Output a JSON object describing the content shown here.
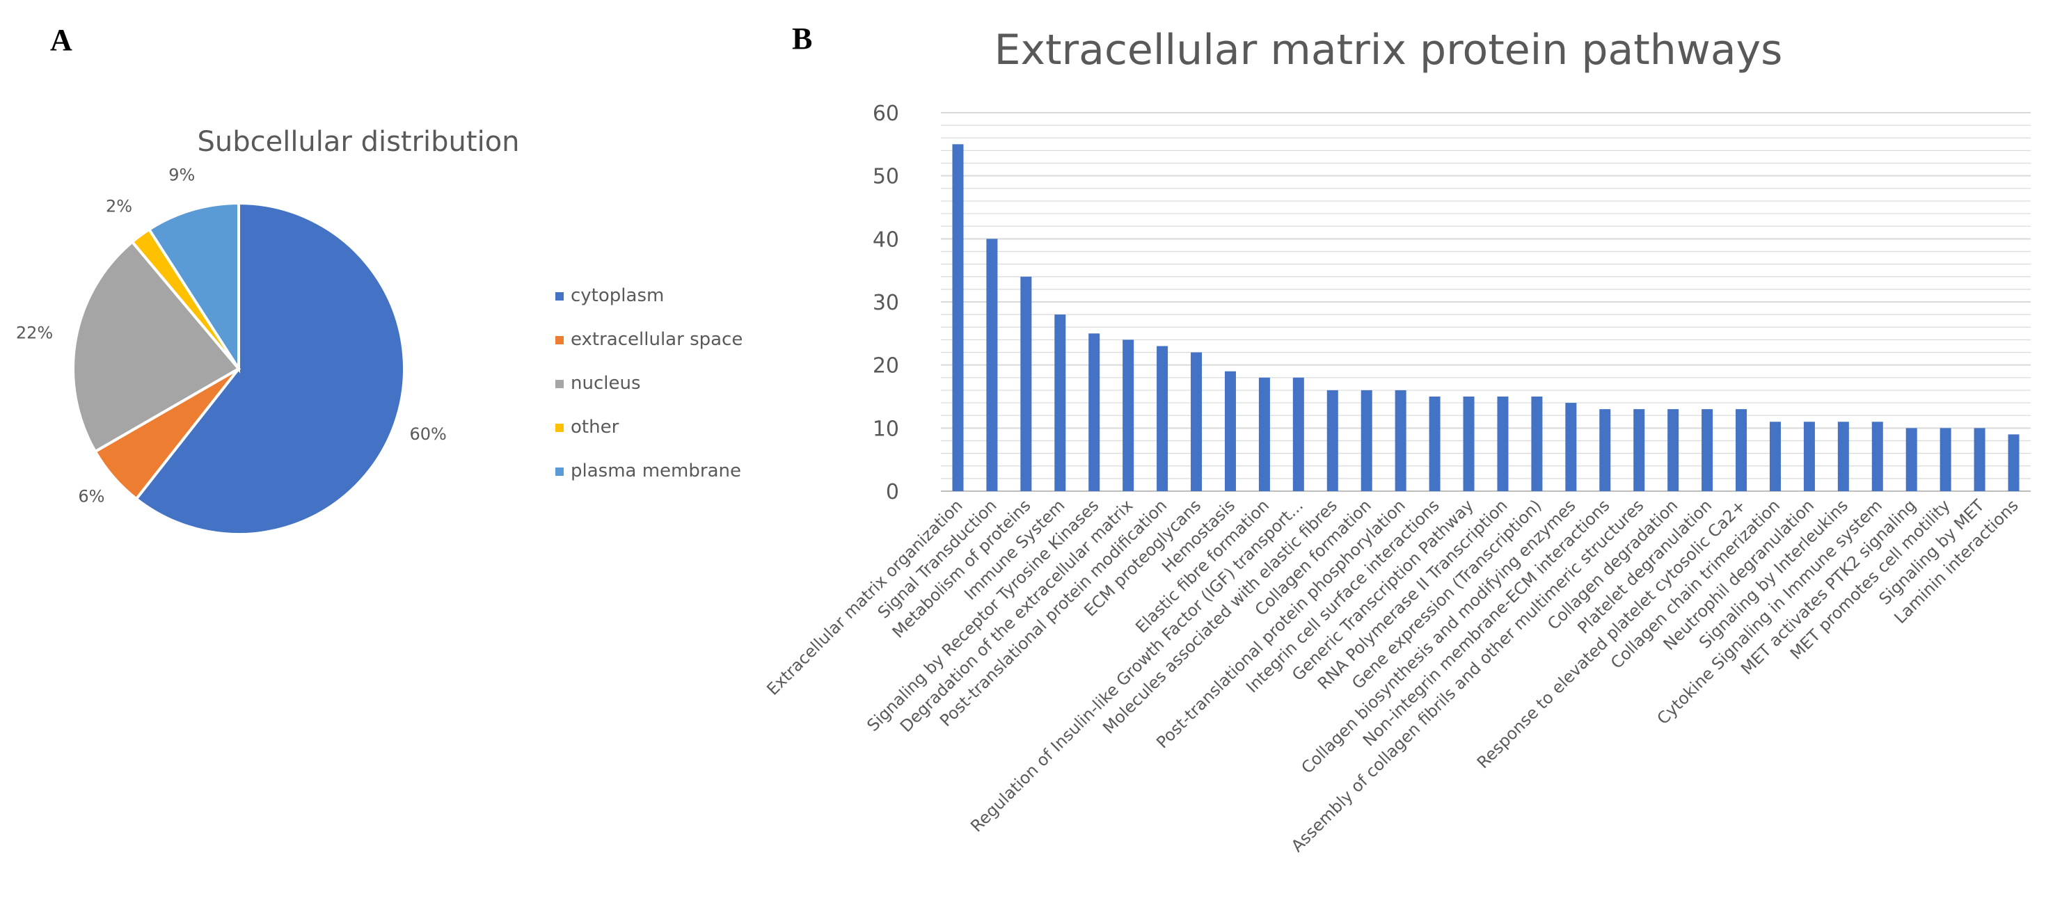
{
  "panels": {
    "a_letter": "A",
    "b_letter": "B"
  },
  "colors": {
    "cytoplasm": "#4472C4",
    "extracellular_space": "#ED7D31",
    "nucleus": "#A5A5A5",
    "other": "#FFC000",
    "plasma_membrane": "#5B9BD5",
    "bar": "#4472C4",
    "grid": "#D9D9D9",
    "text": "#595959"
  },
  "chart_data": [
    {
      "type": "pie",
      "title": "Subcellular distribution",
      "categories": [
        "cytoplasm",
        "extracellular space",
        "nucleus",
        "other",
        "plasma membrane"
      ],
      "values": [
        60,
        6,
        22,
        2,
        9
      ],
      "data_labels": [
        "60%",
        "6%",
        "22%",
        "2%",
        "9%"
      ],
      "legend_position": "right"
    },
    {
      "type": "bar",
      "title": "Extracellular matrix protein pathways",
      "xlabel": "",
      "ylabel": "",
      "ylim": [
        0,
        60
      ],
      "yticks": [
        0,
        10,
        20,
        30,
        40,
        50,
        60
      ],
      "grid": true,
      "categories": [
        "Extracellular matrix organization",
        "Signal Transduction",
        "Metabolism of proteins",
        "Immune System",
        "Signaling by Receptor Tyrosine Kinases",
        "Degradation of the extracellular matrix",
        "Post-translational protein modification",
        "ECM proteoglycans",
        "Hemostasis",
        "Elastic fibre formation",
        "Regulation of Insulin-like Growth Factor (IGF) transport...",
        "Molecules associated with elastic fibres",
        "Collagen formation",
        "Post-translational protein phosphorylation",
        "Integrin cell surface interactions",
        "Generic Transcription Pathway",
        "RNA Polymerase II Transcription",
        "Gene expression (Transcription)",
        "Collagen biosynthesis and modifying enzymes",
        "Non-integrin membrane-ECM interactions",
        "Assembly of collagen fibrils and other multimeric structures",
        "Collagen degradation",
        "Platelet degranulation",
        "Response to elevated platelet cytosolic Ca2+",
        "Collagen chain trimerization",
        "Neutrophil degranulation",
        "Signaling by Interleukins",
        "Cytokine Signaling in Immune system",
        "MET activates PTK2 signaling",
        "MET promotes cell motility",
        "Signaling by MET",
        "Laminin interactions"
      ],
      "values": [
        55,
        40,
        34,
        28,
        25,
        24,
        23,
        22,
        19,
        18,
        18,
        16,
        16,
        16,
        15,
        15,
        15,
        15,
        14,
        13,
        13,
        13,
        13,
        13,
        11,
        11,
        11,
        11,
        10,
        10,
        10,
        9
      ]
    }
  ]
}
